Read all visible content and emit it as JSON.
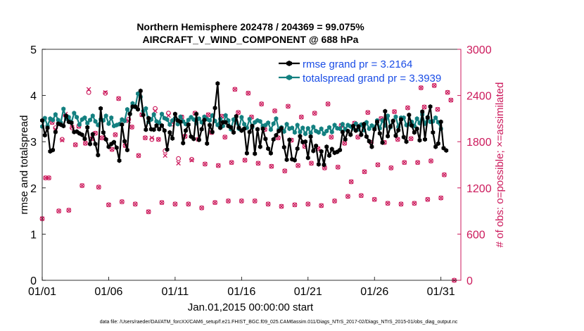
{
  "chart_data": {
    "type": "line",
    "title": "Northern Hemisphere 202478 / 204369 = 99.075%",
    "subtitle": "AIRCRAFT_V_WIND_COMPONENT @ 688 hPa",
    "xlabel": "Jan.01,2015 00:00:00 start",
    "ylabel_left": "rmse and totalspread",
    "ylabel_right": "# of obs: o=possible; ×=assimilated",
    "footer": "data file: /Users/raeder/DAI/ATM_forcXX/CAM6_setup/f.e21.FHIST_BGC.f09_025.CAM6assim.011/Diags_NTrS_2017-02/Diags_NTrS_2015-01/obs_diag_output.nc",
    "xlim": [
      1,
      32.5
    ],
    "xticks": [
      1,
      6,
      11,
      16,
      21,
      26,
      31
    ],
    "xtick_labels": [
      "01/01",
      "01/06",
      "01/11",
      "01/16",
      "01/21",
      "01/26",
      "01/31"
    ],
    "ylim_left": [
      0,
      5
    ],
    "yticks_left": [
      "0",
      "1",
      "2",
      "3",
      "4",
      "5"
    ],
    "ylim_right": [
      0,
      3000
    ],
    "yticks_right": [
      "0",
      "600",
      "1200",
      "1800",
      "2400",
      "3000"
    ],
    "colors": {
      "rmse": "#000000",
      "spread": "#138080",
      "obs": "#cc1a5c",
      "axis": "#000000",
      "legend_text": "#1a4de6"
    },
    "series": [
      {
        "name": "rmse grand pr = 3.2164",
        "y": [
          3.46,
          3.14,
          3.3,
          2.79,
          2.82,
          3.21,
          3.39,
          3.37,
          3.34,
          3.56,
          3.43,
          3.41,
          3.21,
          3.22,
          3.18,
          3.15,
          3.06,
          3.31,
          2.95,
          3.16,
          2.95,
          2.71,
          3.72,
          3.2,
          3.05,
          2.89,
          2.95,
          2.99,
          2.87,
          2.59,
          3.37,
          3.01,
          2.82,
          3.6,
          3.76,
          3.76,
          3.7,
          4.1,
          3.58,
          3.26,
          3.51,
          3.27,
          3.26,
          3.35,
          3.27,
          3.35,
          3.24,
          2.83,
          3.2,
          3.07,
          3.6,
          3.46,
          3.43,
          2.97,
          3.24,
          3.37,
          3.11,
          3.06,
          3.6,
          3.04,
          3.27,
          3.47,
          2.96,
          3.36,
          3.21,
          3.73,
          4.26,
          3.3,
          3.42,
          3.42,
          3.34,
          3.31,
          3.2,
          3.55,
          3.3,
          3.24,
          3.28,
          2.75,
          3.21,
          3.34,
          2.74,
          3.27,
          2.89,
          3.28,
          3.06,
          2.85,
          2.75,
          3.05,
          3.14,
          3.23,
          3.29,
          2.88,
          2.61,
          3.04,
          2.62,
          2.6,
          2.85,
          3.12,
          2.99,
          3.0,
          2.65,
          3.11,
          2.8,
          2.91,
          2.51,
          2.79,
          2.5,
          2.89,
          2.7,
          2.84,
          2.76,
          2.78,
          2.82,
          3.21,
          3.05,
          3.23,
          3.15,
          3.34,
          3.24,
          3.33,
          3.15,
          3.38,
          3.11,
          3.01,
          2.89,
          3.27,
          3.43,
          3.18,
          2.98,
          3.66,
          3.12,
          3.33,
          3.45,
          3.13,
          3.25,
          3.48,
          3.1,
          3.0,
          3.58,
          3.35,
          3.2,
          3.28,
          3.03,
          3.65,
          3.05,
          3.52,
          3.76,
          3.2,
          2.89,
          2.96,
          3.43,
          2.86,
          2.81
        ]
      },
      {
        "name": "totalspread grand pr = 3.3939",
        "y": [
          3.33,
          3.51,
          3.34,
          3.5,
          3.47,
          3.59,
          3.47,
          3.41,
          3.71,
          3.5,
          3.53,
          3.42,
          3.62,
          3.53,
          3.37,
          3.48,
          3.52,
          3.4,
          3.47,
          3.56,
          3.44,
          3.36,
          3.48,
          3.46,
          3.56,
          3.39,
          3.52,
          3.34,
          3.36,
          3.38,
          3.48,
          3.45,
          3.7,
          3.6,
          3.83,
          3.75,
          4.04,
          3.97,
          3.66,
          3.72,
          3.43,
          3.48,
          3.59,
          3.44,
          3.41,
          3.6,
          3.51,
          3.48,
          3.37,
          3.46,
          3.51,
          3.38,
          3.54,
          3.44,
          3.38,
          3.47,
          3.53,
          3.48,
          3.4,
          3.5,
          3.42,
          3.54,
          3.49,
          3.46,
          3.57,
          3.45,
          3.36,
          3.49,
          3.34,
          3.57,
          3.46,
          3.27,
          3.48,
          3.42,
          3.28,
          3.53,
          3.38,
          3.3,
          3.49,
          3.31,
          3.42,
          3.46,
          3.44,
          3.34,
          3.36,
          3.41,
          3.26,
          3.39,
          3.5,
          3.26,
          3.31,
          3.22,
          3.38,
          3.28,
          3.3,
          3.2,
          3.36,
          3.21,
          3.3,
          3.17,
          3.29,
          3.19,
          3.32,
          3.23,
          3.2,
          3.28,
          3.17,
          3.23,
          3.31,
          3.21,
          3.36,
          3.29,
          3.28,
          3.38,
          3.27,
          3.36,
          3.33,
          3.29,
          3.39,
          3.27,
          3.37,
          3.25,
          3.42,
          3.28,
          3.35,
          3.31,
          3.46,
          3.29,
          3.46,
          3.35,
          3.56,
          3.31,
          3.45,
          3.54,
          3.32,
          3.52,
          3.52,
          3.36,
          3.38,
          3.43,
          3.34,
          3.5,
          3.4,
          3.59,
          3.39,
          3.53,
          3.43,
          3.44,
          3.52,
          3.42,
          3.28
        ]
      }
    ],
    "obs_possible": [
      [
        1,
        800
      ],
      [
        1.25,
        1330
      ],
      [
        1.5,
        1330
      ],
      [
        1.75,
        2050
      ],
      [
        2,
        1980
      ],
      [
        2.25,
        900
      ],
      [
        2.5,
        1830
      ],
      [
        2.75,
        2140
      ],
      [
        3,
        910
      ],
      [
        3.25,
        1980
      ],
      [
        3.5,
        1760
      ],
      [
        3.75,
        2000
      ],
      [
        4,
        1230
      ],
      [
        4.25,
        1780
      ],
      [
        4.5,
        2440
      ],
      [
        4.75,
        1840
      ],
      [
        5,
        1910
      ],
      [
        5.25,
        1210
      ],
      [
        5.5,
        1850
      ],
      [
        5.75,
        2430
      ],
      [
        6,
        980
      ],
      [
        6.25,
        1700
      ],
      [
        6.5,
        1890
      ],
      [
        6.75,
        2360
      ],
      [
        7,
        1020
      ],
      [
        7.25,
        1750
      ],
      [
        7.5,
        2090
      ],
      [
        7.75,
        1990
      ],
      [
        8,
        990
      ],
      [
        8.25,
        1620
      ],
      [
        8.5,
        2150
      ],
      [
        8.75,
        1850
      ],
      [
        9,
        890
      ],
      [
        9.25,
        1830
      ],
      [
        9.5,
        2230
      ],
      [
        9.75,
        1830
      ],
      [
        10,
        1010
      ],
      [
        10.25,
        1680
      ],
      [
        10.5,
        2170
      ],
      [
        10.75,
        2030
      ],
      [
        11,
        990
      ],
      [
        11.25,
        1580
      ],
      [
        11.5,
        2120
      ],
      [
        11.75,
        1870
      ],
      [
        12,
        990
      ],
      [
        12.25,
        1570
      ],
      [
        12.5,
        2170
      ],
      [
        12.75,
        1830
      ],
      [
        13,
        940
      ],
      [
        13.25,
        1510
      ],
      [
        13.5,
        2150
      ],
      [
        13.75,
        1920
      ],
      [
        14,
        1010
      ],
      [
        14.25,
        1490
      ],
      [
        14.5,
        2130
      ],
      [
        14.75,
        1860
      ],
      [
        15,
        1030
      ],
      [
        15.25,
        1530
      ],
      [
        15.5,
        2480
      ],
      [
        15.75,
        2180
      ],
      [
        16,
        1030
      ],
      [
        16.25,
        1560
      ],
      [
        16.5,
        2430
      ],
      [
        16.75,
        2120
      ],
      [
        17,
        1030
      ],
      [
        17.25,
        1520
      ],
      [
        17.5,
        2290
      ],
      [
        17.75,
        1960
      ],
      [
        18,
        990
      ],
      [
        18.25,
        1480
      ],
      [
        18.5,
        2200
      ],
      [
        18.75,
        1850
      ],
      [
        19,
        960
      ],
      [
        19.25,
        1420
      ],
      [
        19.5,
        2260
      ],
      [
        19.75,
        1820
      ],
      [
        20,
        980
      ],
      [
        20.25,
        1490
      ],
      [
        20.5,
        2120
      ],
      [
        20.75,
        1740
      ],
      [
        21,
        990
      ],
      [
        21.25,
        1520
      ],
      [
        21.5,
        2170
      ],
      [
        21.75,
        1710
      ],
      [
        22,
        970
      ],
      [
        22.25,
        1460
      ],
      [
        22.5,
        2290
      ],
      [
        22.75,
        1860
      ],
      [
        23,
        1030
      ],
      [
        23.25,
        1470
      ],
      [
        23.5,
        2010
      ],
      [
        23.75,
        1780
      ],
      [
        24,
        1090
      ],
      [
        24.25,
        1280
      ],
      [
        24.5,
        2040
      ],
      [
        24.75,
        1860
      ],
      [
        25,
        1100
      ],
      [
        25.25,
        1410
      ],
      [
        25.5,
        2180
      ],
      [
        25.75,
        1790
      ],
      [
        26,
        1050
      ],
      [
        26.25,
        1500
      ],
      [
        26.5,
        2100
      ],
      [
        26.75,
        1790
      ],
      [
        27,
        1000
      ],
      [
        27.25,
        1460
      ],
      [
        27.5,
        2190
      ],
      [
        27.75,
        1830
      ],
      [
        28,
        990
      ],
      [
        28.25,
        1530
      ],
      [
        28.5,
        2240
      ],
      [
        28.75,
        1840
      ],
      [
        29,
        1000
      ],
      [
        29.25,
        1530
      ],
      [
        29.5,
        2500
      ],
      [
        29.75,
        2250
      ],
      [
        30,
        1050
      ],
      [
        30.25,
        1550
      ],
      [
        30.5,
        2530
      ],
      [
        30.75,
        2220
      ],
      [
        31,
        1070
      ],
      [
        31.25,
        1370
      ],
      [
        31.5,
        2440
      ],
      [
        31.75,
        2340
      ],
      [
        32,
        0
      ]
    ],
    "obs_assimilated": [
      [
        1,
        800
      ],
      [
        1.25,
        1330
      ],
      [
        1.5,
        1330
      ],
      [
        1.75,
        2050
      ],
      [
        2,
        1960
      ],
      [
        2.25,
        900
      ],
      [
        2.5,
        1820
      ],
      [
        2.75,
        2160
      ],
      [
        3,
        910
      ],
      [
        3.25,
        1990
      ],
      [
        3.5,
        1760
      ],
      [
        3.75,
        2000
      ],
      [
        4,
        1230
      ],
      [
        4.25,
        1780
      ],
      [
        4.5,
        2480
      ],
      [
        4.75,
        1840
      ],
      [
        5,
        1910
      ],
      [
        5.25,
        1210
      ],
      [
        5.5,
        1850
      ],
      [
        5.75,
        2440
      ],
      [
        6,
        980
      ],
      [
        6.25,
        1700
      ],
      [
        6.5,
        1890
      ],
      [
        6.75,
        2360
      ],
      [
        7,
        1020
      ],
      [
        7.25,
        1750
      ],
      [
        7.5,
        2070
      ],
      [
        7.75,
        1990
      ],
      [
        8,
        990
      ],
      [
        8.25,
        1620
      ],
      [
        8.5,
        2150
      ],
      [
        8.75,
        1850
      ],
      [
        9,
        890
      ],
      [
        9.25,
        1850
      ],
      [
        9.5,
        2200
      ],
      [
        9.75,
        1830
      ],
      [
        10,
        1010
      ],
      [
        10.25,
        1620
      ],
      [
        10.5,
        2140
      ],
      [
        10.75,
        2050
      ],
      [
        11,
        990
      ],
      [
        11.25,
        1520
      ],
      [
        11.5,
        2120
      ],
      [
        11.75,
        1870
      ],
      [
        12,
        990
      ],
      [
        12.25,
        1560
      ],
      [
        12.5,
        2170
      ],
      [
        12.75,
        1830
      ],
      [
        13,
        940
      ],
      [
        13.25,
        1510
      ],
      [
        13.5,
        2150
      ],
      [
        13.75,
        1920
      ],
      [
        14,
        1010
      ],
      [
        14.25,
        1490
      ],
      [
        14.5,
        2130
      ],
      [
        14.75,
        1860
      ],
      [
        15,
        1030
      ],
      [
        15.25,
        1530
      ],
      [
        15.5,
        2480
      ],
      [
        15.75,
        2180
      ],
      [
        16,
        1030
      ],
      [
        16.25,
        1560
      ],
      [
        16.5,
        2430
      ],
      [
        16.75,
        2120
      ],
      [
        17,
        1030
      ],
      [
        17.25,
        1520
      ],
      [
        17.5,
        2290
      ],
      [
        17.75,
        1960
      ],
      [
        18,
        990
      ],
      [
        18.25,
        1480
      ],
      [
        18.5,
        2200
      ],
      [
        18.75,
        1850
      ],
      [
        19,
        960
      ],
      [
        19.25,
        1420
      ],
      [
        19.5,
        2260
      ],
      [
        19.75,
        1820
      ],
      [
        20,
        980
      ],
      [
        20.25,
        1490
      ],
      [
        20.5,
        2120
      ],
      [
        20.75,
        1740
      ],
      [
        21,
        990
      ],
      [
        21.25,
        1520
      ],
      [
        21.5,
        2170
      ],
      [
        21.75,
        1710
      ],
      [
        22,
        970
      ],
      [
        22.25,
        1460
      ],
      [
        22.5,
        2290
      ],
      [
        22.75,
        1860
      ],
      [
        23,
        1030
      ],
      [
        23.25,
        1470
      ],
      [
        23.5,
        2010
      ],
      [
        23.75,
        1780
      ],
      [
        24,
        1090
      ],
      [
        24.25,
        1280
      ],
      [
        24.5,
        2040
      ],
      [
        24.75,
        1860
      ],
      [
        25,
        1100
      ],
      [
        25.25,
        1410
      ],
      [
        25.5,
        2180
      ],
      [
        25.75,
        1790
      ],
      [
        26,
        1050
      ],
      [
        26.25,
        1500
      ],
      [
        26.5,
        2100
      ],
      [
        26.75,
        1790
      ],
      [
        27,
        1000
      ],
      [
        27.25,
        1460
      ],
      [
        27.5,
        2190
      ],
      [
        27.75,
        1830
      ],
      [
        28,
        990
      ],
      [
        28.25,
        1530
      ],
      [
        28.5,
        2240
      ],
      [
        28.75,
        1840
      ],
      [
        29,
        1000
      ],
      [
        29.25,
        1530
      ],
      [
        29.5,
        2500
      ],
      [
        29.75,
        2250
      ],
      [
        30,
        1050
      ],
      [
        30.25,
        1550
      ],
      [
        30.5,
        2530
      ],
      [
        30.75,
        2220
      ],
      [
        31,
        1070
      ],
      [
        31.25,
        1370
      ],
      [
        31.5,
        2440
      ],
      [
        31.75,
        2340
      ],
      [
        32,
        0
      ]
    ]
  }
}
